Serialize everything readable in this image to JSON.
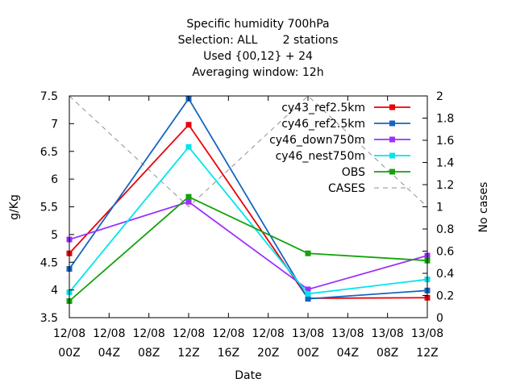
{
  "chart_data": {
    "type": "line",
    "title_lines": [
      "Specific humidity 700hPa",
      "Selection: ALL       2 stations",
      "Used {00,12} + 24",
      "Averaging window: 12h"
    ],
    "xlabel": "Date",
    "ylabel": "g/Kg",
    "y2label": "No cases",
    "x_ticks": [
      [
        "12/08",
        "00Z"
      ],
      [
        "12/08",
        "04Z"
      ],
      [
        "12/08",
        "08Z"
      ],
      [
        "12/08",
        "12Z"
      ],
      [
        "12/08",
        "16Z"
      ],
      [
        "12/08",
        "20Z"
      ],
      [
        "13/08",
        "00Z"
      ],
      [
        "13/08",
        "04Z"
      ],
      [
        "13/08",
        "08Z"
      ],
      [
        "13/08",
        "12Z"
      ]
    ],
    "x_range_hours": [
      0,
      36
    ],
    "ylim": [
      3.5,
      7.5
    ],
    "y_ticks": [
      "3.5",
      "4",
      "4.5",
      "5",
      "5.5",
      "6",
      "6.5",
      "7",
      "7.5"
    ],
    "y2lim": [
      0,
      2
    ],
    "y2_ticks": [
      "0",
      "0.2",
      "0.4",
      "0.6",
      "0.8",
      "1",
      "1.2",
      "1.4",
      "1.6",
      "1.8",
      "2"
    ],
    "x_hours": [
      0,
      12,
      24,
      36
    ],
    "series": [
      {
        "name": "cy43_ref2.5km",
        "color": "#e8000b",
        "values": [
          4.66,
          6.98,
          3.85,
          3.86
        ]
      },
      {
        "name": "cy46_ref2.5km",
        "color": "#1565c0",
        "values": [
          4.38,
          7.45,
          3.84,
          3.99
        ]
      },
      {
        "name": "cy46_down750m",
        "color": "#9b30ff",
        "values": [
          4.91,
          5.59,
          4.01,
          4.62
        ]
      },
      {
        "name": "cy46_nest750m",
        "color": "#00e5ee",
        "values": [
          3.96,
          6.58,
          3.93,
          4.19
        ]
      },
      {
        "name": "OBS",
        "color": "#13a30b",
        "values": [
          3.8,
          5.68,
          4.66,
          4.53
        ]
      }
    ],
    "cases": {
      "name": "CASES",
      "color": "#909090",
      "values": [
        2,
        1,
        2,
        1
      ]
    },
    "legend_position": "top-right"
  }
}
